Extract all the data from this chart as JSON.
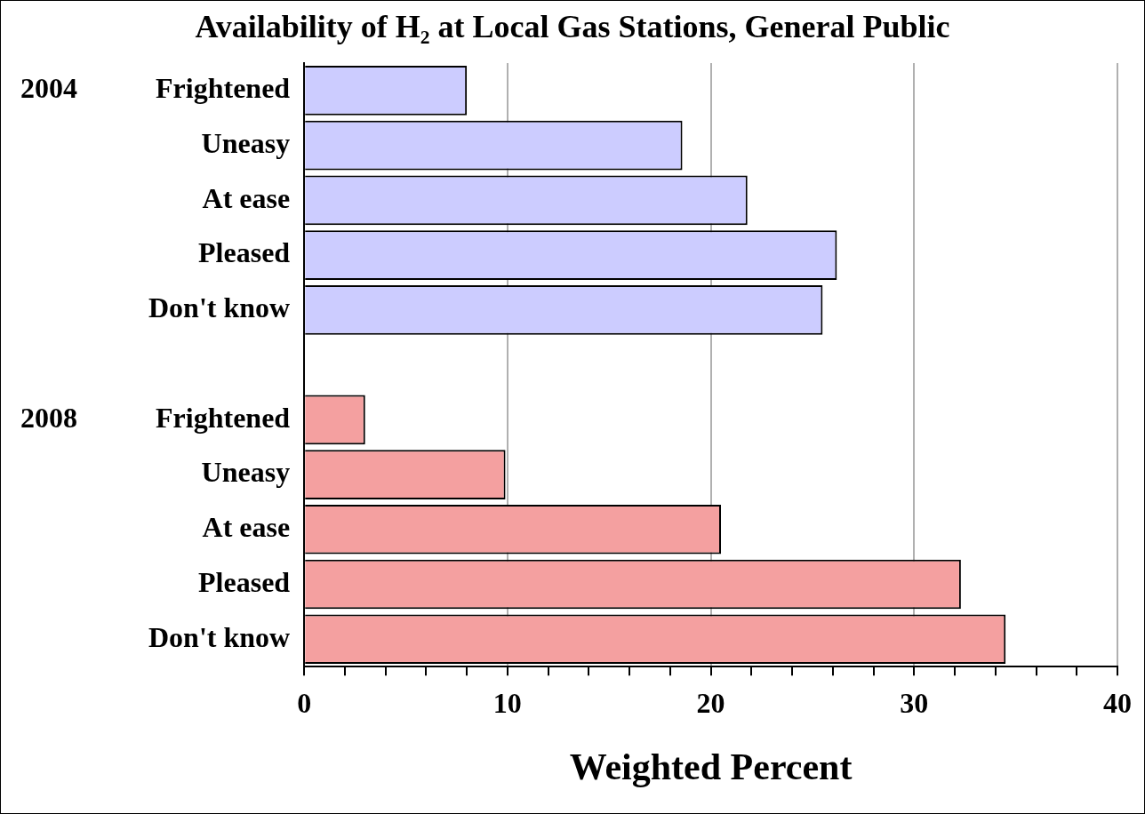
{
  "chart_data": {
    "type": "bar",
    "orientation": "horizontal",
    "title": "Availability of H₂ at Local Gas Stations, General Public",
    "xlabel": "Weighted Percent",
    "categories": [
      "Frightened",
      "Uneasy",
      "At ease",
      "Pleased",
      "Don't know",
      null,
      "Frightened",
      "Uneasy",
      "At ease",
      "Pleased",
      "Don't know"
    ],
    "series": [
      {
        "color": "#ccccff",
        "values": [
          8.0,
          18.6,
          21.8,
          26.2,
          25.5,
          null,
          null,
          null,
          null,
          null,
          null
        ]
      },
      {
        "color": "#f4a0a0",
        "values": [
          null,
          null,
          null,
          null,
          null,
          null,
          3.0,
          9.9,
          20.5,
          32.3,
          34.5
        ]
      }
    ],
    "xlim": [
      0,
      40
    ],
    "xticks": [
      0,
      {
        "value": 2,
        "label": null
      },
      {
        "value": 4,
        "label": null
      },
      {
        "value": 6,
        "label": null
      },
      {
        "value": 8,
        "label": null
      },
      10,
      {
        "value": 12,
        "label": null
      },
      {
        "value": 14,
        "label": null
      },
      {
        "value": 16,
        "label": null
      },
      {
        "value": 18,
        "label": null
      },
      20,
      {
        "value": 22,
        "label": null
      },
      {
        "value": 24,
        "label": null
      },
      {
        "value": 26,
        "label": null
      },
      {
        "value": 28,
        "label": null
      },
      30,
      {
        "value": 32,
        "label": null
      },
      {
        "value": 34,
        "label": null
      },
      {
        "value": 36,
        "label": null
      },
      {
        "value": 38,
        "label": null
      },
      40
    ],
    "annotations": [
      "2004",
      "2008"
    ],
    "grid": "x",
    "legend": false
  }
}
